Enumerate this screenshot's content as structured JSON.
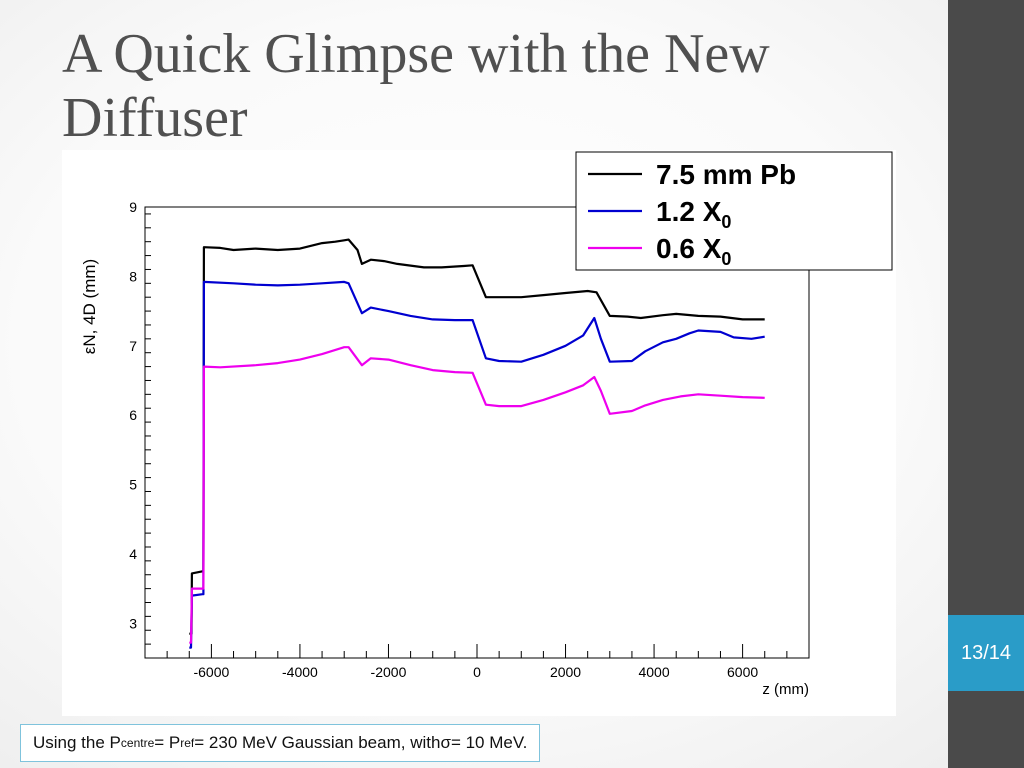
{
  "slide": {
    "title": "A Quick Glimpse with the New Diffuser",
    "page_number": "13/14",
    "caption": {
      "part1": "Using the P",
      "sub1": "centre",
      "part2": " = P",
      "sub2": "ref",
      "part3": " = 230 MeV Gaussian beam, with ",
      "symbol": "σ",
      "part4": " = 10 MeV."
    }
  },
  "colors": {
    "title": "#505050",
    "right_bar": "#4a4a4a",
    "page_badge": "#2a9cc8",
    "caption_border": "#7fc3dc"
  },
  "chart_data": {
    "type": "line",
    "ylabel": "εN, 4D (mm)",
    "xlabel": "z (mm)",
    "xlim": [
      -7500,
      7500
    ],
    "ylim": [
      2.5,
      9
    ],
    "xticks": [
      -6000,
      -4000,
      -2000,
      0,
      2000,
      4000,
      6000
    ],
    "yticks": [
      3,
      4,
      5,
      6,
      7,
      8,
      9
    ],
    "grid": false,
    "legend_position": "top-right",
    "series": [
      {
        "name": "7.5 mm Pb",
        "color": "#000000",
        "points": [
          [
            -6500,
            2.85
          ],
          [
            -6450,
            2.85
          ],
          [
            -6440,
            3.72
          ],
          [
            -6200,
            3.75
          ],
          [
            -6180,
            3.75
          ],
          [
            -6170,
            8.42
          ],
          [
            -5800,
            8.41
          ],
          [
            -5500,
            8.38
          ],
          [
            -5000,
            8.4
          ],
          [
            -4500,
            8.38
          ],
          [
            -4000,
            8.4
          ],
          [
            -3500,
            8.48
          ],
          [
            -3200,
            8.5
          ],
          [
            -3000,
            8.52
          ],
          [
            -2900,
            8.53
          ],
          [
            -2700,
            8.38
          ],
          [
            -2600,
            8.18
          ],
          [
            -2400,
            8.24
          ],
          [
            -2100,
            8.22
          ],
          [
            -1800,
            8.18
          ],
          [
            -1200,
            8.13
          ],
          [
            -800,
            8.13
          ],
          [
            -300,
            8.15
          ],
          [
            -100,
            8.16
          ],
          [
            200,
            7.7
          ],
          [
            500,
            7.7
          ],
          [
            1000,
            7.7
          ],
          [
            1500,
            7.73
          ],
          [
            2000,
            7.76
          ],
          [
            2500,
            7.79
          ],
          [
            2700,
            7.77
          ],
          [
            3000,
            7.43
          ],
          [
            3400,
            7.42
          ],
          [
            3700,
            7.4
          ],
          [
            4200,
            7.44
          ],
          [
            4500,
            7.46
          ],
          [
            5000,
            7.43
          ],
          [
            5500,
            7.42
          ],
          [
            6000,
            7.38
          ],
          [
            6500,
            7.38
          ]
        ]
      },
      {
        "name": "1.2 X0",
        "label_main": "1.2 X",
        "label_sub": "0",
        "color": "#0000d0",
        "points": [
          [
            -6500,
            2.65
          ],
          [
            -6460,
            2.65
          ],
          [
            -6440,
            3.4
          ],
          [
            -6200,
            3.42
          ],
          [
            -6180,
            3.42
          ],
          [
            -6170,
            7.92
          ],
          [
            -5500,
            7.9
          ],
          [
            -5000,
            7.88
          ],
          [
            -4500,
            7.87
          ],
          [
            -4000,
            7.88
          ],
          [
            -3500,
            7.9
          ],
          [
            -3000,
            7.92
          ],
          [
            -2900,
            7.9
          ],
          [
            -2600,
            7.47
          ],
          [
            -2400,
            7.55
          ],
          [
            -2000,
            7.5
          ],
          [
            -1500,
            7.43
          ],
          [
            -1000,
            7.38
          ],
          [
            -500,
            7.37
          ],
          [
            -100,
            7.37
          ],
          [
            200,
            6.82
          ],
          [
            500,
            6.78
          ],
          [
            1000,
            6.77
          ],
          [
            1500,
            6.87
          ],
          [
            2000,
            7.0
          ],
          [
            2400,
            7.15
          ],
          [
            2650,
            7.4
          ],
          [
            2800,
            7.1
          ],
          [
            3000,
            6.77
          ],
          [
            3500,
            6.78
          ],
          [
            3800,
            6.92
          ],
          [
            4200,
            7.05
          ],
          [
            4500,
            7.1
          ],
          [
            4800,
            7.18
          ],
          [
            5000,
            7.22
          ],
          [
            5500,
            7.2
          ],
          [
            5800,
            7.12
          ],
          [
            6200,
            7.1
          ],
          [
            6500,
            7.13
          ]
        ]
      },
      {
        "name": "0.6 X0",
        "label_main": "0.6 X",
        "label_sub": "0",
        "color": "#ee00ee",
        "points": [
          [
            -6500,
            2.72
          ],
          [
            -6460,
            2.72
          ],
          [
            -6440,
            3.5
          ],
          [
            -6200,
            3.5
          ],
          [
            -6180,
            3.5
          ],
          [
            -6170,
            6.7
          ],
          [
            -5800,
            6.69
          ],
          [
            -5000,
            6.72
          ],
          [
            -4500,
            6.75
          ],
          [
            -4000,
            6.8
          ],
          [
            -3500,
            6.88
          ],
          [
            -3000,
            6.98
          ],
          [
            -2900,
            6.98
          ],
          [
            -2600,
            6.72
          ],
          [
            -2400,
            6.82
          ],
          [
            -2000,
            6.8
          ],
          [
            -1500,
            6.72
          ],
          [
            -1000,
            6.65
          ],
          [
            -500,
            6.62
          ],
          [
            -100,
            6.61
          ],
          [
            200,
            6.15
          ],
          [
            500,
            6.13
          ],
          [
            1000,
            6.13
          ],
          [
            1500,
            6.22
          ],
          [
            2000,
            6.33
          ],
          [
            2400,
            6.43
          ],
          [
            2650,
            6.55
          ],
          [
            2800,
            6.35
          ],
          [
            3000,
            6.02
          ],
          [
            3500,
            6.06
          ],
          [
            3800,
            6.14
          ],
          [
            4200,
            6.22
          ],
          [
            4600,
            6.27
          ],
          [
            5000,
            6.3
          ],
          [
            5500,
            6.28
          ],
          [
            6000,
            6.26
          ],
          [
            6500,
            6.25
          ]
        ]
      }
    ]
  }
}
